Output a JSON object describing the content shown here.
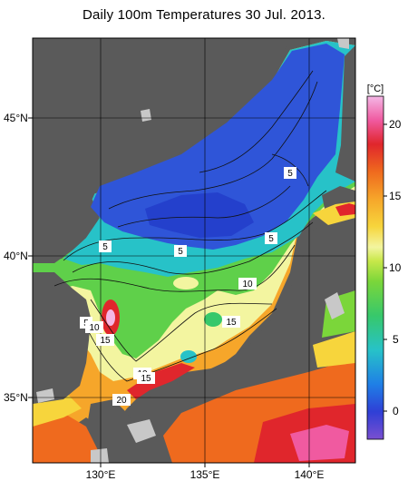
{
  "title": "Daily 100m Temperatures 30 Jul. 2013.",
  "map": {
    "lat_ticks": [
      "45°N",
      "40°N",
      "35°N"
    ],
    "lon_ticks": [
      "130°E",
      "135°E",
      "140°E"
    ]
  },
  "colorbar": {
    "unit_label": "[°C]",
    "ticks": [
      "20",
      "15",
      "10",
      "5",
      "0"
    ],
    "range": [
      -2,
      22
    ],
    "colors": [
      "#7a4fd0",
      "#2f3fd6",
      "#1f7fe6",
      "#27c2c8",
      "#37c86b",
      "#7bd63a",
      "#c8e84a",
      "#f3f5a0",
      "#f7d53c",
      "#f6a62a",
      "#ef6a1e",
      "#e0262c",
      "#f05aa0",
      "#f4b7e6"
    ]
  },
  "contour_labels": [
    {
      "id": "5-hokkaido",
      "text": "5"
    },
    {
      "id": "5-west",
      "text": "5"
    },
    {
      "id": "5-mid",
      "text": "5"
    },
    {
      "id": "5-east",
      "text": "5"
    },
    {
      "id": "10-center",
      "text": "10"
    },
    {
      "id": "15-center",
      "text": "15"
    },
    {
      "id": "5-korea",
      "text": "5"
    },
    {
      "id": "10-korea",
      "text": "10"
    },
    {
      "id": "15-korea",
      "text": "15"
    },
    {
      "id": "10-tsushima",
      "text": "10"
    },
    {
      "id": "15-tsushima",
      "text": "15"
    },
    {
      "id": "20-south",
      "text": "20"
    }
  ],
  "colors": {
    "land": "#5a5a5a",
    "no_data": "#c8c8c8",
    "grid": "#000000"
  }
}
